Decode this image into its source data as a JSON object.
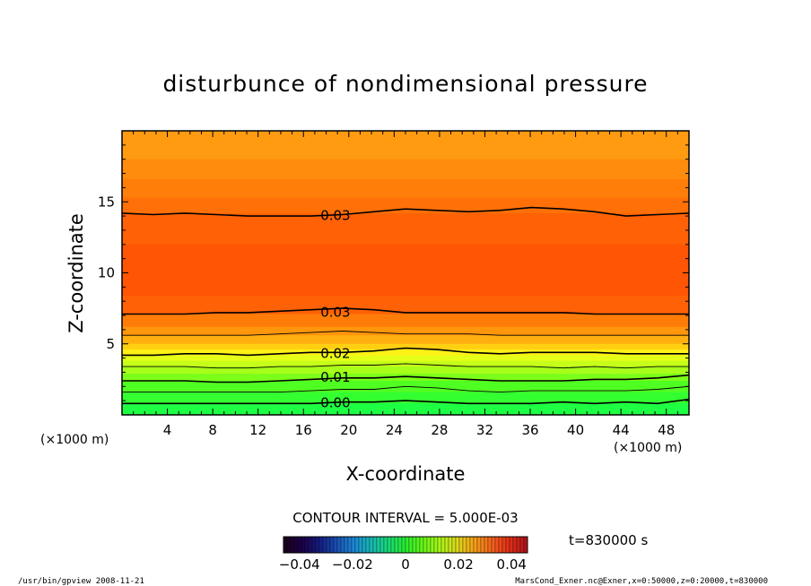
{
  "chart_data": {
    "type": "heatmap",
    "title": "disturbunce of nondimensional pressure",
    "xlabel": "X-coordinate",
    "ylabel": "Z-coordinate",
    "x_unit": "(×1000 m)",
    "z_unit": "(×1000 m)",
    "xlim": [
      0,
      50
    ],
    "ylim": [
      0,
      20
    ],
    "x_ticks": [
      4,
      8,
      12,
      16,
      20,
      24,
      28,
      32,
      36,
      40,
      44,
      48
    ],
    "y_ticks": [
      5,
      10,
      15
    ],
    "x_tick_labels": [
      "4",
      "8",
      "12",
      "16",
      "20",
      "24",
      "28",
      "32",
      "36",
      "40",
      "44",
      "48"
    ],
    "y_tick_labels": [
      "5",
      "10",
      "15"
    ],
    "contour_interval": "CONTOUR INTERVAL = 5.000E-03",
    "contour_labels": [
      {
        "text": "0.03",
        "x": 17.5,
        "z": 14.1
      },
      {
        "text": "0.03",
        "x": 17.5,
        "z": 7.3
      },
      {
        "text": "0.02",
        "x": 17.5,
        "z": 4.4
      },
      {
        "text": "0.01",
        "x": 17.5,
        "z": 2.7
      },
      {
        "text": "0.00",
        "x": 17.5,
        "z": 0.9
      }
    ],
    "contours": [
      {
        "level": 0.03,
        "major": true,
        "z": [
          14.2,
          14.1,
          14.2,
          14.1,
          14.0,
          14.0,
          14.0,
          14.1,
          14.3,
          14.5,
          14.4,
          14.3,
          14.4,
          14.6,
          14.5,
          14.3,
          14.0,
          14.1,
          14.2
        ]
      },
      {
        "level": 0.03,
        "major": true,
        "z": [
          7.1,
          7.1,
          7.1,
          7.2,
          7.2,
          7.3,
          7.4,
          7.5,
          7.4,
          7.2,
          7.2,
          7.2,
          7.2,
          7.2,
          7.2,
          7.1,
          7.1,
          7.1,
          7.1
        ]
      },
      {
        "level": 0.025,
        "major": false,
        "z": [
          5.6,
          5.6,
          5.6,
          5.6,
          5.6,
          5.7,
          5.8,
          5.9,
          5.8,
          5.7,
          5.7,
          5.7,
          5.6,
          5.6,
          5.6,
          5.6,
          5.6,
          5.6,
          5.6
        ]
      },
      {
        "level": 0.02,
        "major": true,
        "z": [
          4.2,
          4.2,
          4.3,
          4.3,
          4.2,
          4.3,
          4.4,
          4.4,
          4.5,
          4.7,
          4.6,
          4.4,
          4.3,
          4.4,
          4.4,
          4.4,
          4.3,
          4.3,
          4.3
        ]
      },
      {
        "level": 0.015,
        "major": false,
        "z": [
          3.4,
          3.4,
          3.4,
          3.3,
          3.3,
          3.4,
          3.4,
          3.5,
          3.5,
          3.6,
          3.5,
          3.4,
          3.4,
          3.4,
          3.3,
          3.4,
          3.3,
          3.4,
          3.4
        ]
      },
      {
        "level": 0.01,
        "major": true,
        "z": [
          2.4,
          2.4,
          2.4,
          2.3,
          2.3,
          2.4,
          2.5,
          2.6,
          2.6,
          2.7,
          2.6,
          2.5,
          2.4,
          2.4,
          2.4,
          2.5,
          2.5,
          2.6,
          2.8
        ]
      },
      {
        "level": 0.005,
        "major": false,
        "z": [
          1.6,
          1.6,
          1.6,
          1.6,
          1.6,
          1.6,
          1.7,
          1.8,
          1.8,
          2.0,
          1.9,
          1.7,
          1.6,
          1.7,
          1.7,
          1.7,
          1.7,
          1.8,
          2.0
        ]
      },
      {
        "level": 0.0,
        "major": true,
        "z": [
          0.8,
          0.8,
          0.8,
          0.8,
          0.8,
          0.8,
          0.8,
          0.9,
          0.9,
          1.0,
          0.9,
          0.8,
          0.8,
          0.8,
          0.9,
          0.8,
          0.9,
          0.8,
          1.1
        ]
      }
    ],
    "fill_bands": [
      {
        "z0": 18.0,
        "z1": 20.0,
        "color": "#ff9b10"
      },
      {
        "z0": 16.6,
        "z1": 18.0,
        "color": "#ff8c0c"
      },
      {
        "z0": 15.3,
        "z1": 16.6,
        "color": "#ff7e0a"
      },
      {
        "z0": 14.2,
        "z1": 15.3,
        "color": "#ff7008"
      },
      {
        "z0": 12.0,
        "z1": 14.2,
        "color": "#ff6206"
      },
      {
        "z0": 8.4,
        "z1": 12.0,
        "color": "#ff5504"
      },
      {
        "z0": 7.1,
        "z1": 8.4,
        "color": "#ff6206"
      },
      {
        "z0": 6.2,
        "z1": 7.1,
        "color": "#ff7c08"
      },
      {
        "z0": 5.6,
        "z1": 6.2,
        "color": "#ff960c"
      },
      {
        "z0": 5.0,
        "z1": 5.6,
        "color": "#ffb010"
      },
      {
        "z0": 4.6,
        "z1": 5.0,
        "color": "#ffd012"
      },
      {
        "z0": 4.2,
        "z1": 4.6,
        "color": "#fff016"
      },
      {
        "z0": 3.8,
        "z1": 4.2,
        "color": "#e6ff18"
      },
      {
        "z0": 3.4,
        "z1": 3.8,
        "color": "#c6ff1a"
      },
      {
        "z0": 2.9,
        "z1": 3.4,
        "color": "#a8ff1a"
      },
      {
        "z0": 2.4,
        "z1": 2.9,
        "color": "#7cff1a"
      },
      {
        "z0": 1.6,
        "z1": 2.4,
        "color": "#50ff22"
      },
      {
        "z0": 0.8,
        "z1": 1.6,
        "color": "#34ff30"
      },
      {
        "z0": 0.0,
        "z1": 0.8,
        "color": "#1eff44"
      }
    ],
    "colorbar": {
      "labels": [
        "−0.04",
        "−0.02",
        "0",
        "0.02",
        "0.04"
      ],
      "values": [
        -0.04,
        -0.02,
        0,
        0.02,
        0.04
      ],
      "vmin": -0.046,
      "vmax": 0.046,
      "colors": [
        "#1a001e",
        "#1b0048",
        "#141c80",
        "#1a50b4",
        "#1c86d4",
        "#18b8b4",
        "#18d878",
        "#28ec30",
        "#64f418",
        "#a8f418",
        "#dcd81c",
        "#f4a018",
        "#f4641c",
        "#e43018",
        "#b41418"
      ]
    },
    "time": "t=830000 s"
  },
  "footer": {
    "left": "/usr/bin/gpview   2008-11-21",
    "right": "MarsCond_Exner.nc@Exner,x=0:50000,z=0:20000,t=830000"
  },
  "colors": {
    "frame": "#000000",
    "contour": "#000000"
  }
}
